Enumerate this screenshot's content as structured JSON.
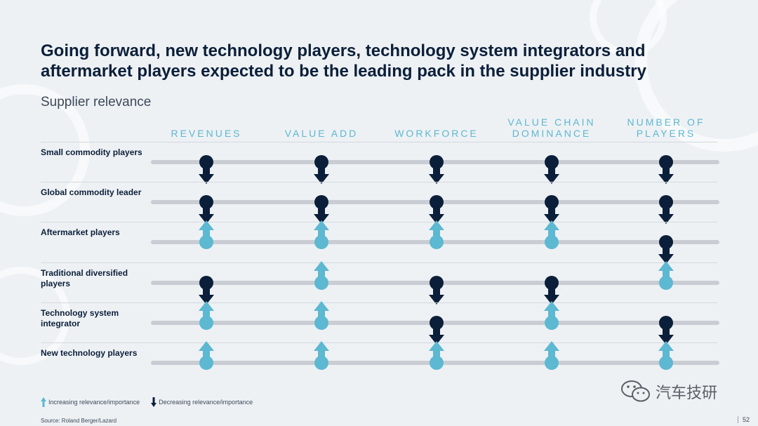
{
  "title": "Going forward, new technology players, technology system integrators and aftermarket players expected to be the leading pack in the supplier industry",
  "subtitle": "Supplier relevance",
  "columns": [
    "REVENUES",
    "VALUE ADD",
    "WORKFORCE",
    "VALUE CHAIN\nDOMINANCE",
    "NUMBER OF\nPLAYERS"
  ],
  "rows": [
    {
      "label": "Small commodity players",
      "values": [
        "down",
        "down",
        "down",
        "down",
        "down"
      ]
    },
    {
      "label": "Global commodity leader",
      "values": [
        "down",
        "down",
        "down",
        "down",
        "down"
      ]
    },
    {
      "label": "Aftermarket players",
      "values": [
        "up",
        "up",
        "up",
        "up",
        "down"
      ]
    },
    {
      "label": "Traditional diversified players",
      "values": [
        "down",
        "up",
        "down",
        "down",
        "up"
      ]
    },
    {
      "label": "Technology system integrator",
      "values": [
        "up",
        "up",
        "down",
        "up",
        "down"
      ]
    },
    {
      "label": "New technology players",
      "values": [
        "up",
        "up",
        "up",
        "up",
        "up"
      ]
    }
  ],
  "legend": {
    "increasing": "Increasing relevance/importance",
    "decreasing": "Decreasing relevance/importance"
  },
  "source": "Source: Roland Berger/Lazard",
  "page_number": "52",
  "watermark": "汽车技研",
  "colors": {
    "up": "#5db8d2",
    "down": "#0b1f3a",
    "track": "#c9cdd3"
  }
}
